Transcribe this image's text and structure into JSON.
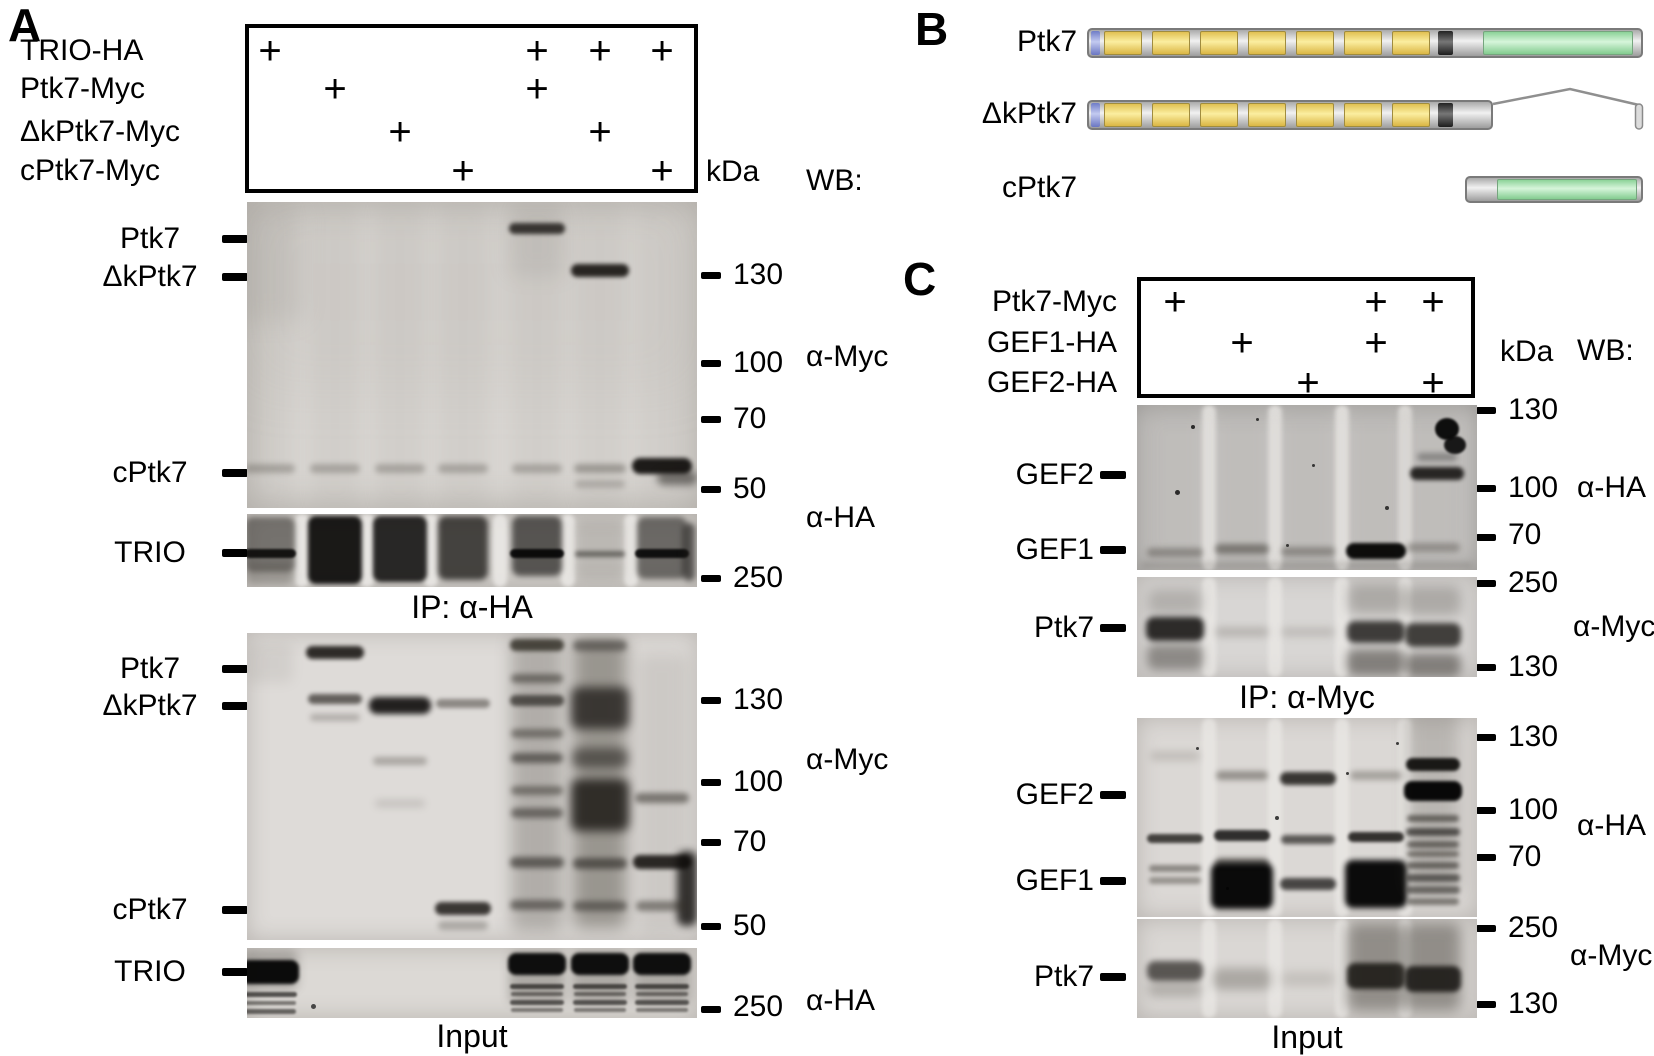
{
  "panelA": {
    "letter": "A",
    "plus": "+",
    "expression_table": {
      "rows": [
        {
          "label": "TRIO-HA",
          "plus_lanes": [
            1,
            5,
            6,
            7
          ]
        },
        {
          "label": "Ptk7-Myc",
          "plus_lanes": [
            2,
            5
          ]
        },
        {
          "label": "ΔkPtk7-Myc",
          "plus_lanes": [
            3,
            6
          ]
        },
        {
          "label": "cPtk7-Myc",
          "plus_lanes": [
            4,
            7
          ]
        }
      ],
      "num_lanes": 7
    },
    "kda_label": "kDa",
    "wb_label": "WB:",
    "ip_section": {
      "myc_blot": {
        "protein_labels": [
          "Ptk7",
          "ΔkPtk7",
          "cPtk7"
        ],
        "markers": [
          "130",
          "100",
          "70",
          "50"
        ],
        "antibody": "α-Myc"
      },
      "ha_blot": {
        "protein_labels": [
          "TRIO"
        ],
        "markers": [
          "250"
        ],
        "antibody": "α-HA"
      },
      "caption": "IP: α-HA"
    },
    "input_section": {
      "myc_blot": {
        "protein_labels": [
          "Ptk7",
          "ΔkPtk7",
          "cPtk7"
        ],
        "markers": [
          "130",
          "100",
          "70",
          "50"
        ],
        "antibody": "α-Myc"
      },
      "ha_blot": {
        "protein_labels": [
          "TRIO"
        ],
        "markers": [
          "250"
        ],
        "antibody": "α-HA"
      },
      "caption": "Input"
    }
  },
  "panelB": {
    "letter": "B",
    "constructs": [
      "Ptk7",
      "ΔkPtk7",
      "cPtk7"
    ],
    "domain_colors": {
      "n_terminus": "#8e9ad8",
      "ig_domain": "#f7e27b",
      "spacer": "#c6c6c6",
      "transmembrane": "#3d3d3d",
      "kinase": "#b4e7ba"
    }
  },
  "panelC": {
    "letter": "C",
    "plus": "+",
    "expression_table": {
      "rows": [
        {
          "label": "Ptk7-Myc",
          "plus_lanes": [
            1,
            4,
            5
          ]
        },
        {
          "label": "GEF1-HA",
          "plus_lanes": [
            2,
            4
          ]
        },
        {
          "label": "GEF2-HA",
          "plus_lanes": [
            3,
            5
          ]
        }
      ],
      "num_lanes": 5
    },
    "kda_label": "kDa",
    "wb_label": "WB:",
    "ip_section": {
      "ha_blot": {
        "protein_labels": [
          "GEF2",
          "GEF1"
        ],
        "markers": [
          "130",
          "100",
          "70"
        ],
        "antibody": "α-HA"
      },
      "myc_blot": {
        "protein_labels": [
          "Ptk7"
        ],
        "markers": [
          "250",
          "130"
        ],
        "antibody": "α-Myc"
      },
      "caption": "IP: α-Myc"
    },
    "input_section": {
      "ha_blot": {
        "protein_labels": [
          "GEF2",
          "GEF1"
        ],
        "markers": [
          "130",
          "100",
          "70"
        ],
        "antibody": "α-HA"
      },
      "myc_blot": {
        "protein_labels": [
          "Ptk7"
        ],
        "markers": [
          "250",
          "130"
        ],
        "antibody": "α-Myc"
      },
      "caption": "Input"
    }
  }
}
